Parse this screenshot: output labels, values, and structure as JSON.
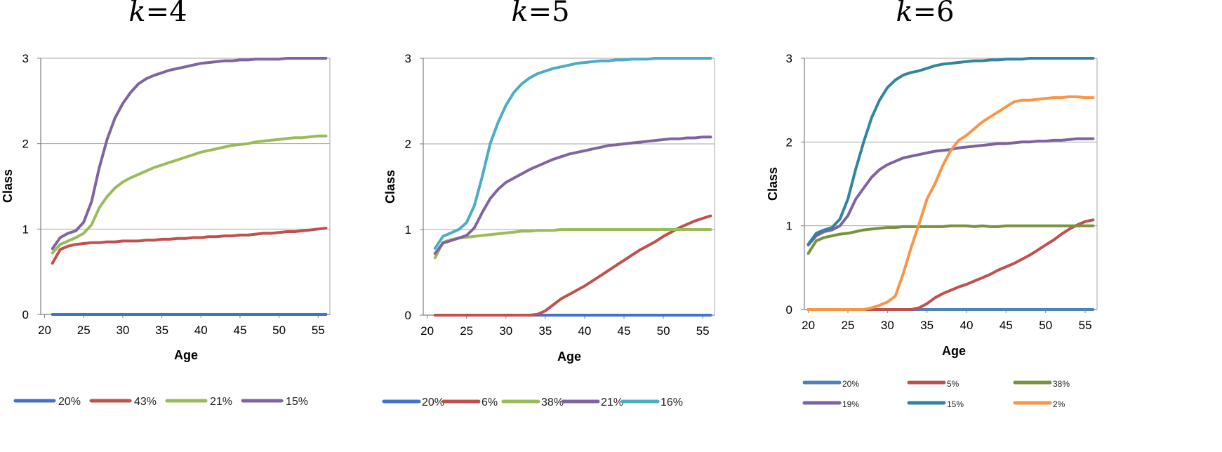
{
  "chart_data": [
    {
      "type": "line",
      "title_k": "k",
      "title_rest": "=4",
      "xlabel": "Age",
      "ylabel": "Class",
      "xlim": [
        19.5,
        56.5
      ],
      "ylim": [
        0,
        3
      ],
      "xticks": [
        "20",
        "25",
        "30",
        "35",
        "40",
        "45",
        "50",
        "55"
      ],
      "yticks": [
        "0",
        "1",
        "2",
        "3"
      ],
      "grid": "horizontal",
      "legend_position": "bottom",
      "x": [
        21,
        22,
        23,
        24,
        25,
        26,
        27,
        28,
        29,
        30,
        31,
        32,
        33,
        34,
        35,
        36,
        37,
        38,
        39,
        40,
        41,
        42,
        43,
        44,
        45,
        46,
        47,
        48,
        49,
        50,
        51,
        52,
        53,
        54,
        55,
        56
      ],
      "series": [
        {
          "name": "20%",
          "color": "#4472C4",
          "values": [
            0,
            0,
            0,
            0,
            0,
            0,
            0,
            0,
            0,
            0,
            0,
            0,
            0,
            0,
            0,
            0,
            0,
            0,
            0,
            0,
            0,
            0,
            0,
            0,
            0,
            0,
            0,
            0,
            0,
            0,
            0,
            0,
            0,
            0,
            0,
            0
          ]
        },
        {
          "name": "43%",
          "color": "#C0504D",
          "values": [
            0.6,
            0.76,
            0.8,
            0.82,
            0.83,
            0.84,
            0.84,
            0.85,
            0.85,
            0.86,
            0.86,
            0.86,
            0.87,
            0.87,
            0.88,
            0.88,
            0.89,
            0.89,
            0.9,
            0.9,
            0.91,
            0.91,
            0.92,
            0.92,
            0.93,
            0.93,
            0.94,
            0.95,
            0.95,
            0.96,
            0.97,
            0.97,
            0.98,
            0.99,
            1.0,
            1.01
          ]
        },
        {
          "name": "21%",
          "color": "#9BBB59",
          "values": [
            0.72,
            0.82,
            0.86,
            0.9,
            0.95,
            1.05,
            1.25,
            1.38,
            1.48,
            1.55,
            1.6,
            1.64,
            1.68,
            1.72,
            1.75,
            1.78,
            1.81,
            1.84,
            1.87,
            1.9,
            1.92,
            1.94,
            1.96,
            1.98,
            1.99,
            2.0,
            2.02,
            2.03,
            2.04,
            2.05,
            2.06,
            2.07,
            2.07,
            2.08,
            2.09,
            2.09
          ]
        },
        {
          "name": "15%",
          "color": "#8064A2",
          "values": [
            0.77,
            0.9,
            0.95,
            0.98,
            1.08,
            1.32,
            1.72,
            2.05,
            2.3,
            2.47,
            2.6,
            2.7,
            2.76,
            2.8,
            2.83,
            2.86,
            2.88,
            2.9,
            2.92,
            2.94,
            2.95,
            2.96,
            2.97,
            2.97,
            2.98,
            2.98,
            2.99,
            2.99,
            2.99,
            2.99,
            3.0,
            3.0,
            3.0,
            3.0,
            3.0,
            3.0
          ]
        }
      ]
    },
    {
      "type": "line",
      "title_k": "k",
      "title_rest": "=5",
      "xlabel": "Age",
      "ylabel": "Class",
      "xlim": [
        19.5,
        56.5
      ],
      "ylim": [
        0,
        3
      ],
      "xticks": [
        "20",
        "25",
        "30",
        "35",
        "40",
        "45",
        "50",
        "55"
      ],
      "yticks": [
        "0",
        "1",
        "2",
        "3"
      ],
      "grid": "horizontal",
      "legend_position": "bottom",
      "x": [
        21,
        22,
        23,
        24,
        25,
        26,
        27,
        28,
        29,
        30,
        31,
        32,
        33,
        34,
        35,
        36,
        37,
        38,
        39,
        40,
        41,
        42,
        43,
        44,
        45,
        46,
        47,
        48,
        49,
        50,
        51,
        52,
        53,
        54,
        55,
        56
      ],
      "series": [
        {
          "name": "20%",
          "color": "#4472C4",
          "values": [
            0,
            0,
            0,
            0,
            0,
            0,
            0,
            0,
            0,
            0,
            0,
            0,
            0,
            0,
            0,
            0,
            0,
            0,
            0,
            0,
            0,
            0,
            0,
            0,
            0,
            0,
            0,
            0,
            0,
            0,
            0,
            0,
            0,
            0,
            0,
            0
          ]
        },
        {
          "name": "6%",
          "color": "#C0504D",
          "values": [
            0,
            0,
            0,
            0,
            0,
            0,
            0,
            0,
            0,
            0,
            0,
            0,
            0,
            0.01,
            0.05,
            0.12,
            0.19,
            0.24,
            0.29,
            0.34,
            0.4,
            0.46,
            0.52,
            0.58,
            0.64,
            0.7,
            0.76,
            0.81,
            0.86,
            0.92,
            0.97,
            1.02,
            1.06,
            1.1,
            1.13,
            1.16
          ]
        },
        {
          "name": "38%",
          "color": "#9BBB59",
          "values": [
            0.67,
            0.85,
            0.88,
            0.9,
            0.91,
            0.92,
            0.93,
            0.94,
            0.95,
            0.96,
            0.97,
            0.98,
            0.98,
            0.99,
            0.99,
            0.99,
            1.0,
            1.0,
            1.0,
            1.0,
            1.0,
            1.0,
            1.0,
            1.0,
            1.0,
            1.0,
            1.0,
            1.0,
            1.0,
            1.0,
            1.0,
            1.0,
            1.0,
            1.0,
            1.0,
            1.0
          ]
        },
        {
          "name": "21%",
          "color": "#8064A2",
          "values": [
            0.72,
            0.84,
            0.87,
            0.9,
            0.93,
            1.02,
            1.2,
            1.36,
            1.47,
            1.55,
            1.6,
            1.65,
            1.7,
            1.74,
            1.78,
            1.82,
            1.85,
            1.88,
            1.9,
            1.92,
            1.94,
            1.96,
            1.98,
            1.99,
            2.0,
            2.01,
            2.02,
            2.03,
            2.04,
            2.05,
            2.06,
            2.06,
            2.07,
            2.07,
            2.08,
            2.08
          ]
        },
        {
          "name": "16%",
          "color": "#4BACC6",
          "values": [
            0.78,
            0.92,
            0.96,
            1.0,
            1.08,
            1.28,
            1.62,
            2.0,
            2.25,
            2.45,
            2.6,
            2.7,
            2.77,
            2.82,
            2.85,
            2.88,
            2.9,
            2.92,
            2.94,
            2.95,
            2.96,
            2.97,
            2.97,
            2.98,
            2.98,
            2.99,
            2.99,
            2.99,
            3.0,
            3.0,
            3.0,
            3.0,
            3.0,
            3.0,
            3.0,
            3.0
          ]
        }
      ]
    },
    {
      "type": "line",
      "title_k": "k",
      "title_rest": "=6",
      "xlabel": "Age",
      "ylabel": "Class",
      "xlim": [
        19.5,
        56.5
      ],
      "ylim": [
        0,
        3
      ],
      "xticks": [
        "20",
        "25",
        "30",
        "35",
        "40",
        "45",
        "50",
        "55"
      ],
      "yticks": [
        "0",
        "1",
        "2",
        "3"
      ],
      "grid": "horizontal",
      "legend_position": "bottom",
      "x": [
        20,
        21,
        22,
        23,
        24,
        25,
        26,
        27,
        28,
        29,
        30,
        31,
        32,
        33,
        34,
        35,
        36,
        37,
        38,
        39,
        40,
        41,
        42,
        43,
        44,
        45,
        46,
        47,
        48,
        49,
        50,
        51,
        52,
        53,
        54,
        55,
        56
      ],
      "series": [
        {
          "name": "20%",
          "color": "#4F81BD",
          "values": [
            0,
            0,
            0,
            0,
            0,
            0,
            0,
            0,
            0,
            0,
            0,
            0,
            0,
            0,
            0,
            0,
            0,
            0,
            0,
            0,
            0,
            0,
            0,
            0,
            0,
            0,
            0,
            0,
            0,
            0,
            0,
            0,
            0,
            0,
            0,
            0,
            0
          ]
        },
        {
          "name": "5%",
          "color": "#C0504D",
          "values": [
            0,
            0,
            0,
            0,
            0,
            0,
            0,
            0,
            0,
            0,
            0,
            0,
            0,
            0,
            0.02,
            0.07,
            0.14,
            0.19,
            0.23,
            0.27,
            0.3,
            0.34,
            0.38,
            0.42,
            0.47,
            0.51,
            0.55,
            0.6,
            0.65,
            0.71,
            0.77,
            0.83,
            0.9,
            0.96,
            1.01,
            1.05,
            1.07
          ]
        },
        {
          "name": "38%",
          "color": "#77933C",
          "values": [
            0.67,
            0.82,
            0.86,
            0.88,
            0.9,
            0.91,
            0.93,
            0.95,
            0.96,
            0.97,
            0.98,
            0.98,
            0.99,
            0.99,
            0.99,
            0.99,
            0.99,
            0.99,
            1.0,
            1.0,
            1.0,
            0.99,
            1.0,
            0.99,
            0.99,
            1.0,
            1.0,
            1.0,
            1.0,
            1.0,
            1.0,
            1.0,
            1.0,
            1.0,
            1.0,
            1.0,
            1.0
          ]
        },
        {
          "name": "19%",
          "color": "#7F63A1",
          "values": [
            0.77,
            0.88,
            0.93,
            0.95,
            1.0,
            1.12,
            1.32,
            1.45,
            1.58,
            1.67,
            1.73,
            1.77,
            1.81,
            1.83,
            1.85,
            1.87,
            1.89,
            1.9,
            1.91,
            1.93,
            1.94,
            1.95,
            1.96,
            1.97,
            1.98,
            1.98,
            1.99,
            2.0,
            2.0,
            2.01,
            2.01,
            2.02,
            2.02,
            2.03,
            2.04,
            2.04,
            2.04
          ]
        },
        {
          "name": "15%",
          "color": "#31859C",
          "values": [
            0.78,
            0.91,
            0.95,
            0.98,
            1.08,
            1.32,
            1.68,
            2.0,
            2.29,
            2.5,
            2.65,
            2.74,
            2.8,
            2.83,
            2.85,
            2.88,
            2.91,
            2.93,
            2.94,
            2.95,
            2.96,
            2.97,
            2.97,
            2.98,
            2.98,
            2.99,
            2.99,
            2.99,
            3.0,
            3.0,
            3.0,
            3.0,
            3.0,
            3.0,
            3.0,
            3.0,
            3.0
          ]
        },
        {
          "name": "2%",
          "color": "#F79646",
          "values": [
            0,
            0,
            0,
            0,
            0,
            0,
            0,
            0,
            0.02,
            0.05,
            0.09,
            0.16,
            0.43,
            0.74,
            1.02,
            1.32,
            1.5,
            1.72,
            1.9,
            2.02,
            2.08,
            2.16,
            2.24,
            2.3,
            2.36,
            2.42,
            2.48,
            2.5,
            2.5,
            2.51,
            2.52,
            2.53,
            2.53,
            2.54,
            2.54,
            2.53,
            2.53
          ]
        }
      ]
    }
  ]
}
